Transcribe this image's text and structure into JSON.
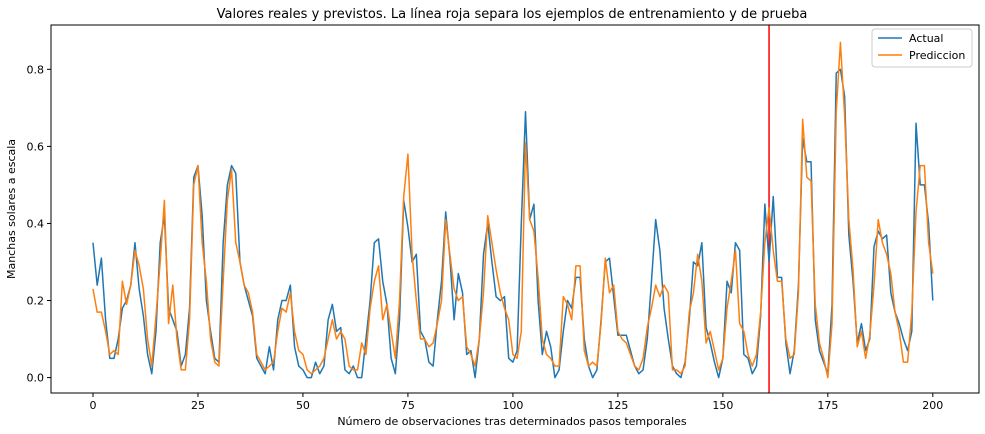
{
  "chart_data": {
    "type": "line",
    "title": "Valores reales y previstos. La línea roja separa los ejemplos de entrenamiento y de prueba",
    "xlabel": "Número de observaciones tras determinados pasos temporales",
    "ylabel": "Manchas solares a escala",
    "xlim": [
      -10,
      211
    ],
    "ylim": [
      -0.04,
      0.915
    ],
    "xticks": [
      0,
      25,
      50,
      75,
      100,
      125,
      150,
      175,
      200
    ],
    "yticks": [
      0.0,
      0.2,
      0.4,
      0.6,
      0.8
    ],
    "ytick_labels": [
      "0.0",
      "0.2",
      "0.4",
      "0.6",
      "0.8"
    ],
    "legend_position": "top-right",
    "split_line": {
      "x": 161,
      "color": "#ff0000"
    },
    "series": [
      {
        "name": "Actual",
        "color": "#1f77b4",
        "values": [
          0.35,
          0.24,
          0.31,
          0.15,
          0.05,
          0.05,
          0.1,
          0.18,
          0.2,
          0.24,
          0.35,
          0.23,
          0.16,
          0.06,
          0.01,
          0.12,
          0.35,
          0.42,
          0.18,
          0.15,
          0.12,
          0.03,
          0.06,
          0.18,
          0.52,
          0.55,
          0.42,
          0.2,
          0.12,
          0.05,
          0.04,
          0.35,
          0.5,
          0.55,
          0.53,
          0.3,
          0.24,
          0.2,
          0.16,
          0.05,
          0.03,
          0.01,
          0.08,
          0.02,
          0.15,
          0.2,
          0.2,
          0.24,
          0.08,
          0.03,
          0.02,
          0.0,
          0.0,
          0.04,
          0.01,
          0.03,
          0.15,
          0.19,
          0.12,
          0.13,
          0.02,
          0.01,
          0.03,
          0.0,
          0.0,
          0.1,
          0.2,
          0.35,
          0.36,
          0.25,
          0.19,
          0.05,
          0.01,
          0.15,
          0.46,
          0.39,
          0.3,
          0.32,
          0.12,
          0.1,
          0.04,
          0.03,
          0.15,
          0.25,
          0.43,
          0.31,
          0.15,
          0.27,
          0.22,
          0.06,
          0.07,
          0.0,
          0.1,
          0.32,
          0.4,
          0.3,
          0.21,
          0.2,
          0.21,
          0.05,
          0.04,
          0.07,
          0.4,
          0.69,
          0.41,
          0.45,
          0.2,
          0.06,
          0.12,
          0.08,
          0.0,
          0.02,
          0.12,
          0.2,
          0.18,
          0.26,
          0.26,
          0.1,
          0.03,
          0.0,
          0.02,
          0.15,
          0.3,
          0.31,
          0.21,
          0.11,
          0.11,
          0.11,
          0.07,
          0.03,
          0.01,
          0.02,
          0.1,
          0.25,
          0.41,
          0.33,
          0.18,
          0.1,
          0.03,
          0.01,
          0.0,
          0.04,
          0.15,
          0.3,
          0.29,
          0.35,
          0.13,
          0.09,
          0.04,
          0.0,
          0.05,
          0.25,
          0.22,
          0.35,
          0.33,
          0.06,
          0.05,
          0.01,
          0.03,
          0.16,
          0.45,
          0.3,
          0.47,
          0.26,
          0.26,
          0.09,
          0.01,
          0.07,
          0.24,
          0.62,
          0.56,
          0.56,
          0.15,
          0.07,
          0.04,
          0.01,
          0.19,
          0.79,
          0.8,
          0.73,
          0.37,
          0.25,
          0.09,
          0.14,
          0.07,
          0.1,
          0.34,
          0.38,
          0.36,
          0.37,
          0.22,
          0.17,
          0.14,
          0.1,
          0.07,
          0.12,
          0.66,
          0.5,
          0.5,
          0.4,
          0.2
        ]
      },
      {
        "name": "Prediccion",
        "color": "#ff7f0e",
        "values": [
          0.23,
          0.17,
          0.17,
          0.12,
          0.06,
          0.07,
          0.06,
          0.25,
          0.19,
          0.24,
          0.33,
          0.29,
          0.23,
          0.1,
          0.03,
          0.16,
          0.3,
          0.46,
          0.14,
          0.24,
          0.1,
          0.02,
          0.02,
          0.15,
          0.5,
          0.55,
          0.35,
          0.25,
          0.1,
          0.04,
          0.03,
          0.25,
          0.46,
          0.54,
          0.35,
          0.3,
          0.24,
          0.22,
          0.17,
          0.06,
          0.04,
          0.02,
          0.03,
          0.04,
          0.12,
          0.18,
          0.17,
          0.22,
          0.12,
          0.07,
          0.06,
          0.02,
          0.01,
          0.02,
          0.03,
          0.05,
          0.1,
          0.15,
          0.1,
          0.12,
          0.1,
          0.03,
          0.02,
          0.02,
          0.09,
          0.06,
          0.18,
          0.25,
          0.29,
          0.15,
          0.19,
          0.12,
          0.05,
          0.2,
          0.47,
          0.58,
          0.32,
          0.2,
          0.1,
          0.1,
          0.08,
          0.09,
          0.14,
          0.2,
          0.41,
          0.32,
          0.23,
          0.2,
          0.21,
          0.08,
          0.06,
          0.03,
          0.1,
          0.22,
          0.42,
          0.35,
          0.28,
          0.22,
          0.18,
          0.15,
          0.06,
          0.05,
          0.12,
          0.61,
          0.41,
          0.38,
          0.26,
          0.1,
          0.06,
          0.05,
          0.03,
          0.03,
          0.21,
          0.19,
          0.15,
          0.29,
          0.29,
          0.07,
          0.03,
          0.04,
          0.03,
          0.14,
          0.31,
          0.22,
          0.24,
          0.12,
          0.1,
          0.09,
          0.06,
          0.03,
          0.02,
          0.05,
          0.13,
          0.18,
          0.24,
          0.21,
          0.24,
          0.22,
          0.02,
          0.02,
          0.01,
          0.03,
          0.17,
          0.22,
          0.32,
          0.25,
          0.09,
          0.12,
          0.07,
          0.02,
          0.05,
          0.18,
          0.25,
          0.33,
          0.14,
          0.12,
          0.06,
          0.03,
          0.06,
          0.17,
          0.35,
          0.44,
          0.33,
          0.25,
          0.25,
          0.1,
          0.05,
          0.06,
          0.22,
          0.67,
          0.52,
          0.51,
          0.19,
          0.09,
          0.05,
          0.0,
          0.14,
          0.69,
          0.87,
          0.68,
          0.41,
          0.28,
          0.08,
          0.12,
          0.05,
          0.11,
          0.24,
          0.41,
          0.35,
          0.32,
          0.27,
          0.17,
          0.12,
          0.04,
          0.04,
          0.17,
          0.43,
          0.55,
          0.55,
          0.35,
          0.27
        ]
      }
    ]
  }
}
